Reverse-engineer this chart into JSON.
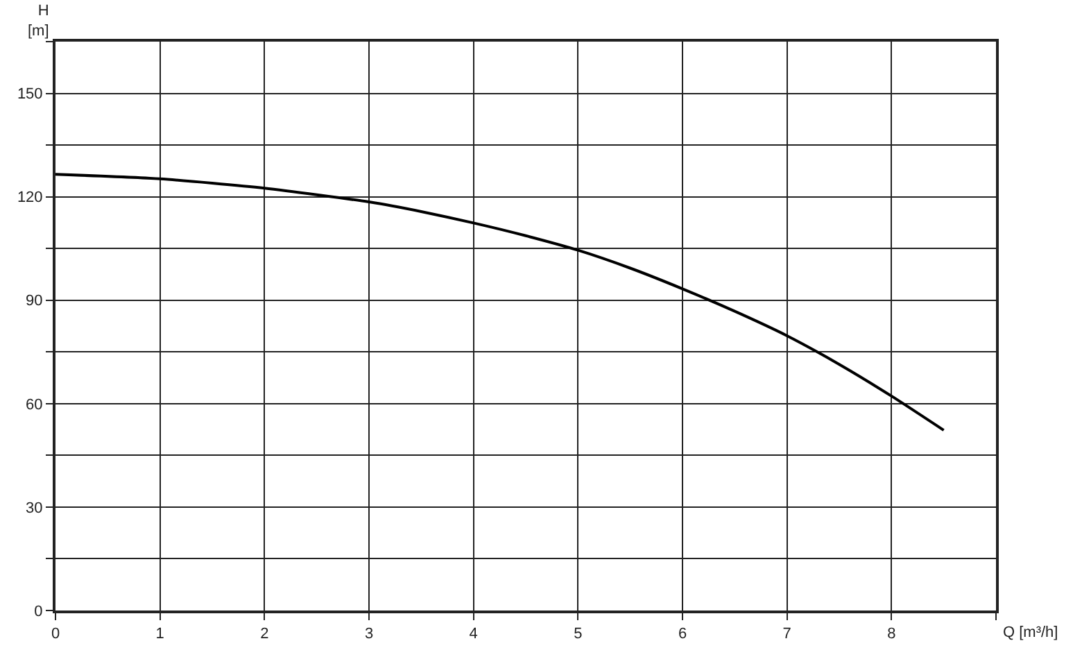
{
  "chart_data": {
    "type": "line",
    "xlabel": "Q [m³/h]",
    "ylabel": "H\n[m]",
    "series": [
      {
        "color": "#000000",
        "x": [
          0,
          1,
          2,
          3,
          3.5,
          4,
          4.5,
          5,
          5.5,
          6,
          6.5,
          7,
          7.5,
          8,
          8.5
        ],
        "values": [
          126.5,
          125.2,
          122.5,
          118.5,
          115.7,
          112.4,
          108.7,
          104.5,
          99.3,
          93.3,
          86.8,
          79.7,
          71.4,
          62.2,
          52.3
        ]
      }
    ],
    "xlim": [
      0,
      9
    ],
    "xticks": [
      0,
      1,
      2,
      3,
      4,
      5,
      6,
      7,
      8,
      {
        "value": 9,
        "label": null
      }
    ],
    "ylim": [
      0,
      165
    ],
    "yticks": [
      0,
      {
        "value": 15,
        "label": null
      },
      30,
      {
        "value": 45,
        "label": null
      },
      60,
      {
        "value": 75,
        "label": null
      },
      90,
      {
        "value": 105,
        "label": null
      },
      120,
      {
        "value": 135,
        "label": null
      },
      150,
      {
        "value": 165,
        "label": null
      }
    ],
    "grid": true,
    "marker": "none",
    "line_style": "solid"
  }
}
